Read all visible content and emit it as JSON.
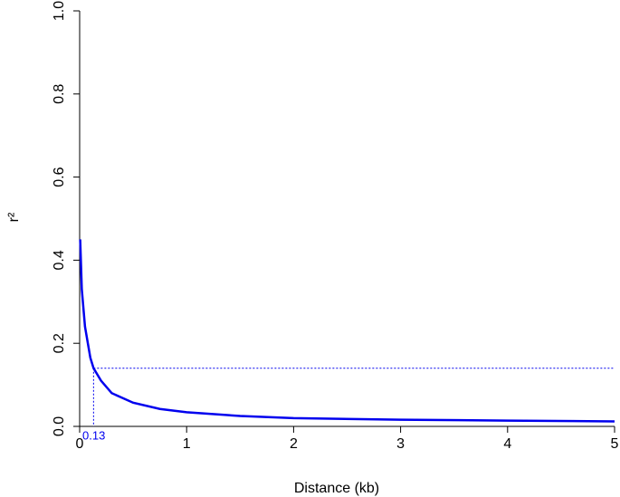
{
  "chart_data": {
    "type": "line",
    "xlabel": "Distance (kb)",
    "ylabel": "r²",
    "x": [
      0.005,
      0.02,
      0.05,
      0.1,
      0.13,
      0.2,
      0.3,
      0.5,
      0.75,
      1,
      1.5,
      2,
      3,
      4,
      5
    ],
    "series": [
      {
        "color": "#0000ee",
        "values": [
          0.45,
          0.33,
          0.24,
          0.165,
          0.14,
          0.11,
          0.08,
          0.057,
          0.042,
          0.034,
          0.025,
          0.02,
          0.016,
          0.014,
          0.012
        ]
      }
    ],
    "decay_distance": 0.13,
    "threshold_r2": 0.14,
    "annotation_color": "#0000ee",
    "xlim": [
      0,
      5
    ],
    "ylim": [
      0,
      1
    ],
    "xticks": [
      0,
      1,
      2,
      3,
      4,
      5
    ],
    "yticks": [
      {
        "value": 0,
        "label": "0.0"
      },
      {
        "value": 0.2,
        "label": "0.2"
      },
      {
        "value": 0.4,
        "label": "0.4"
      },
      {
        "value": 0.6,
        "label": "0.6"
      },
      {
        "value": 0.8,
        "label": "0.8"
      },
      {
        "value": 1,
        "label": "1.0"
      }
    ]
  }
}
